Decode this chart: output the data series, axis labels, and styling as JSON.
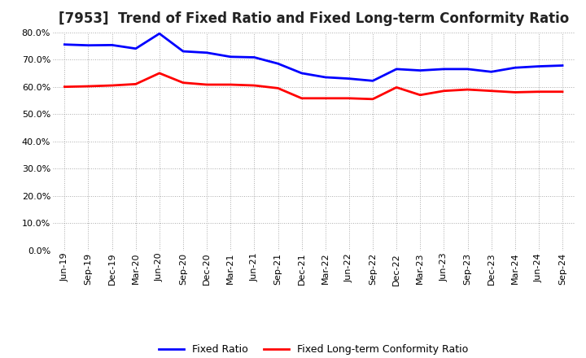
{
  "title": "[7953]  Trend of Fixed Ratio and Fixed Long-term Conformity Ratio",
  "x_labels": [
    "Jun-19",
    "Sep-19",
    "Dec-19",
    "Mar-20",
    "Jun-20",
    "Sep-20",
    "Dec-20",
    "Mar-21",
    "Jun-21",
    "Sep-21",
    "Dec-21",
    "Mar-22",
    "Jun-22",
    "Sep-22",
    "Dec-22",
    "Mar-23",
    "Jun-23",
    "Sep-23",
    "Dec-23",
    "Mar-24",
    "Jun-24",
    "Sep-24"
  ],
  "fixed_ratio": [
    75.5,
    75.2,
    75.3,
    74.0,
    79.5,
    73.0,
    72.5,
    71.0,
    70.8,
    68.5,
    65.0,
    63.5,
    63.0,
    62.2,
    66.5,
    66.0,
    66.5,
    66.5,
    65.5,
    67.0,
    67.5,
    67.8
  ],
  "fixed_lt_ratio": [
    60.0,
    60.2,
    60.5,
    61.0,
    65.0,
    61.5,
    60.8,
    60.8,
    60.5,
    59.5,
    55.8,
    55.8,
    55.8,
    55.5,
    59.8,
    57.0,
    58.5,
    59.0,
    58.5,
    58.0,
    58.2,
    58.2
  ],
  "fixed_ratio_color": "#0000FF",
  "fixed_lt_ratio_color": "#FF0000",
  "line_width": 2.0,
  "ylim": [
    0,
    80
  ],
  "yticks": [
    0,
    10,
    20,
    30,
    40,
    50,
    60,
    70,
    80
  ],
  "background_color": "#FFFFFF",
  "plot_bg_color": "#FFFFFF",
  "grid_color": "#AAAAAA",
  "title_fontsize": 12,
  "tick_fontsize": 8,
  "legend_labels": [
    "Fixed Ratio",
    "Fixed Long-term Conformity Ratio"
  ]
}
